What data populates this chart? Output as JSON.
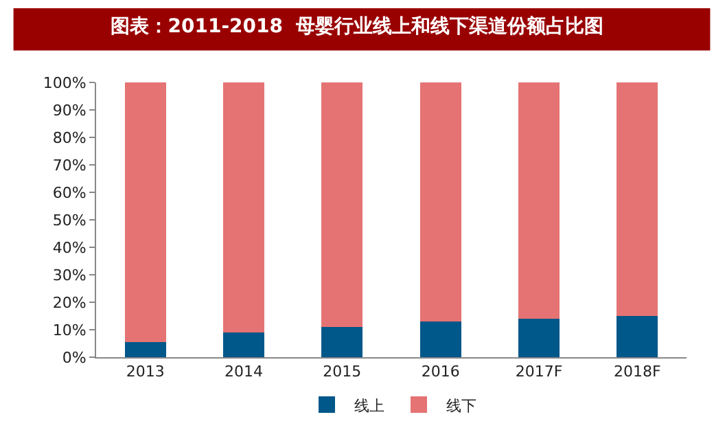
{
  "chart_data": {
    "type": "bar",
    "title": "图表：2011-2018  母婴行业线上和线下渠道份额占比图",
    "stacked": true,
    "categories": [
      "2013",
      "2014",
      "2015",
      "2016",
      "2017F",
      "2018F"
    ],
    "series": [
      {
        "name": "线上",
        "color": "#00578a",
        "values": [
          5.5,
          9,
          11,
          13,
          14,
          15
        ]
      },
      {
        "name": "线下",
        "color": "#e57373",
        "values": [
          94.5,
          91,
          89,
          87,
          86,
          85
        ]
      }
    ],
    "ylim": [
      0,
      100
    ],
    "yticks": [
      {
        "value": 0,
        "label": "0%"
      },
      {
        "value": 10,
        "label": "10%"
      },
      {
        "value": 20,
        "label": "20%"
      },
      {
        "value": 30,
        "label": "30%"
      },
      {
        "value": 40,
        "label": "40%"
      },
      {
        "value": 50,
        "label": "50%"
      },
      {
        "value": 60,
        "label": "60%"
      },
      {
        "value": 70,
        "label": "70%"
      },
      {
        "value": 80,
        "label": "80%"
      },
      {
        "value": 90,
        "label": "90%"
      },
      {
        "value": 100,
        "label": "100%"
      }
    ],
    "legend": "bottom"
  }
}
